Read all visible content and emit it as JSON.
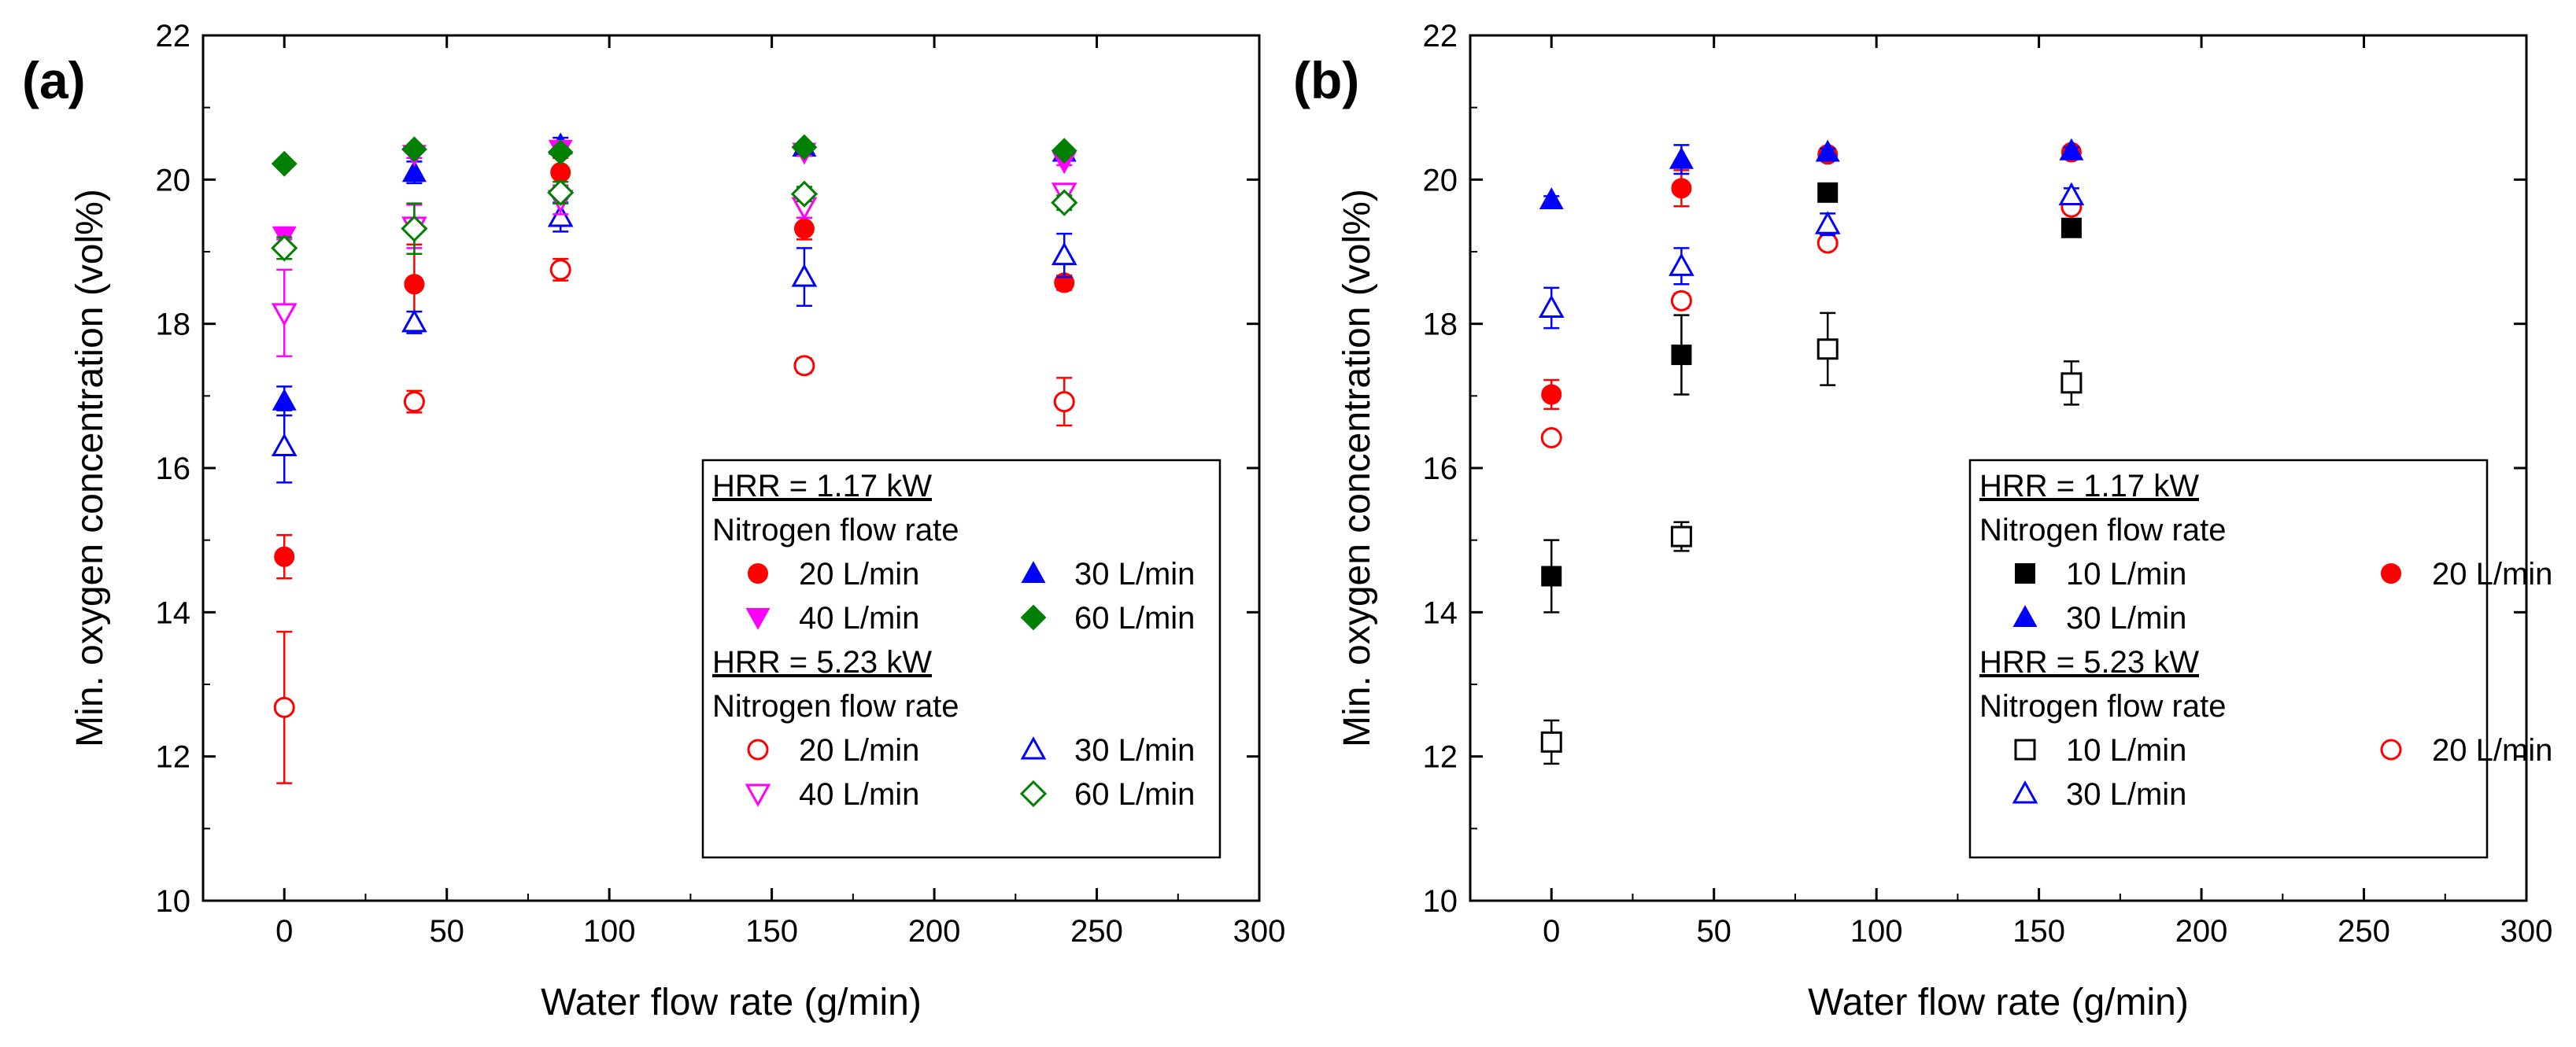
{
  "chart_data": [
    {
      "type": "scatter",
      "panel_label": "(a)",
      "xlabel": "Water flow rate (g/min)",
      "ylabel": "Min. oxygen concentration (vol%)",
      "xlim": [
        -25,
        300
      ],
      "ylim": [
        10,
        22
      ],
      "xticks": [
        0,
        50,
        100,
        150,
        200,
        250,
        300
      ],
      "yticks": [
        10,
        12,
        14,
        16,
        18,
        20,
        22
      ],
      "grid": false,
      "legend_placement": "bottom-right",
      "legend_groups": [
        {
          "heading": "HRR = 1.17 kW",
          "subheading": "Nitrogen flow rate",
          "entries": [
            0,
            1,
            2,
            3
          ]
        },
        {
          "heading": "HRR = 5.23 kW",
          "subheading": "Nitrogen flow rate",
          "entries": [
            4,
            5,
            6,
            7
          ]
        }
      ],
      "series": [
        {
          "name": "20 L/min",
          "marker": "circle",
          "filled": true,
          "color": "#ff0000",
          "points": [
            {
              "x": 0,
              "y": 14.77,
              "err": 0.3
            },
            {
              "x": 40,
              "y": 18.55,
              "err": 0.55
            },
            {
              "x": 85,
              "y": 20.1,
              "err": 0.2
            },
            {
              "x": 160,
              "y": 19.32,
              "err": 0.15
            },
            {
              "x": 240,
              "y": 18.57,
              "err": 0.1
            }
          ]
        },
        {
          "name": "30 L/min",
          "marker": "triangle-up",
          "filled": true,
          "color": "#0000ff",
          "points": [
            {
              "x": 0,
              "y": 16.93,
              "err": 0.2
            },
            {
              "x": 40,
              "y": 20.1,
              "err": 0.15
            },
            {
              "x": 85,
              "y": 20.48,
              "err": 0.1
            },
            {
              "x": 160,
              "y": 20.45,
              "err": 0.05
            },
            {
              "x": 240,
              "y": 20.38,
              "err": 0.05
            }
          ]
        },
        {
          "name": "40 L/min",
          "marker": "triangle-down",
          "filled": true,
          "color": "#ff00ff",
          "points": [
            {
              "x": 0,
              "y": 19.22,
              "err": 0.05
            },
            {
              "x": 40,
              "y": 20.35,
              "err": 0.05
            },
            {
              "x": 85,
              "y": 20.42,
              "err": 0.05
            },
            {
              "x": 160,
              "y": 20.38,
              "err": 0.05
            },
            {
              "x": 240,
              "y": 20.25,
              "err": 0.05
            }
          ]
        },
        {
          "name": "60 L/min",
          "marker": "diamond",
          "filled": true,
          "color": "#008000",
          "points": [
            {
              "x": 0,
              "y": 20.22,
              "err": 0.05
            },
            {
              "x": 40,
              "y": 20.42,
              "err": 0.05
            },
            {
              "x": 85,
              "y": 20.38,
              "err": 0.05
            },
            {
              "x": 160,
              "y": 20.45,
              "err": 0.05
            },
            {
              "x": 240,
              "y": 20.4,
              "err": 0.05
            }
          ]
        },
        {
          "name": "20 L/min",
          "marker": "circle",
          "filled": false,
          "color": "#ff0000",
          "points": [
            {
              "x": 0,
              "y": 12.68,
              "err": 1.05
            },
            {
              "x": 40,
              "y": 16.92,
              "err": 0.15
            },
            {
              "x": 85,
              "y": 18.75,
              "err": 0.15
            },
            {
              "x": 160,
              "y": 17.42,
              "err": 0.1
            },
            {
              "x": 240,
              "y": 16.92,
              "err": 0.33
            }
          ]
        },
        {
          "name": "30 L/min",
          "marker": "triangle-up",
          "filled": false,
          "color": "#0000ff",
          "points": [
            {
              "x": 0,
              "y": 16.3,
              "err": 0.5
            },
            {
              "x": 40,
              "y": 18.02,
              "err": 0.15
            },
            {
              "x": 85,
              "y": 19.48,
              "err": 0.2
            },
            {
              "x": 160,
              "y": 18.65,
              "err": 0.4
            },
            {
              "x": 240,
              "y": 18.95,
              "err": 0.3
            }
          ]
        },
        {
          "name": "40 L/min",
          "marker": "triangle-down",
          "filled": false,
          "color": "#ff00ff",
          "points": [
            {
              "x": 0,
              "y": 18.15,
              "err": 0.6
            },
            {
              "x": 40,
              "y": 19.35,
              "err": 0.3
            },
            {
              "x": 85,
              "y": 19.72,
              "err": 0.2
            },
            {
              "x": 160,
              "y": 19.62,
              "err": 0.15
            },
            {
              "x": 240,
              "y": 19.82,
              "err": 0.1
            }
          ]
        },
        {
          "name": "60 L/min",
          "marker": "diamond",
          "filled": false,
          "color": "#008000",
          "points": [
            {
              "x": 0,
              "y": 19.05,
              "err": 0.15
            },
            {
              "x": 40,
              "y": 19.32,
              "err": 0.35
            },
            {
              "x": 85,
              "y": 19.82,
              "err": 0.15
            },
            {
              "x": 160,
              "y": 19.8,
              "err": 0.1
            },
            {
              "x": 240,
              "y": 19.68,
              "err": 0.1
            }
          ]
        }
      ]
    },
    {
      "type": "scatter",
      "panel_label": "(b)",
      "xlabel": "Water flow rate (g/min)",
      "ylabel": "Min. oxygen concentration (vol%)",
      "xlim": [
        -25,
        300
      ],
      "ylim": [
        10,
        22
      ],
      "xticks": [
        0,
        50,
        100,
        150,
        200,
        250,
        300
      ],
      "yticks": [
        10,
        12,
        14,
        16,
        18,
        20,
        22
      ],
      "grid": false,
      "legend_placement": "bottom-right",
      "legend_groups": [
        {
          "heading": "HRR = 1.17 kW",
          "subheading": "Nitrogen flow rate",
          "entries": [
            0,
            1,
            2
          ]
        },
        {
          "heading": "HRR = 5.23 kW",
          "subheading": "Nitrogen flow rate",
          "entries": [
            3,
            4,
            5
          ]
        }
      ],
      "series": [
        {
          "name": "10 L/min",
          "marker": "square",
          "filled": true,
          "color": "#000000",
          "points": [
            {
              "x": 0,
              "y": 14.5,
              "err": 0.5
            },
            {
              "x": 40,
              "y": 17.57,
              "err": 0.55
            },
            {
              "x": 85,
              "y": 19.82,
              "err": 0.05
            },
            {
              "x": 160,
              "y": 19.33,
              "err": 0.05
            }
          ]
        },
        {
          "name": "20 L/min",
          "marker": "circle",
          "filled": true,
          "color": "#ff0000",
          "points": [
            {
              "x": 0,
              "y": 17.02,
              "err": 0.2
            },
            {
              "x": 40,
              "y": 19.88,
              "err": 0.25
            },
            {
              "x": 85,
              "y": 20.35,
              "err": 0.05
            },
            {
              "x": 160,
              "y": 20.38,
              "err": 0.05
            }
          ]
        },
        {
          "name": "30 L/min",
          "marker": "triangle-up",
          "filled": true,
          "color": "#0000ff",
          "points": [
            {
              "x": 0,
              "y": 19.72,
              "err": 0.05
            },
            {
              "x": 40,
              "y": 20.28,
              "err": 0.2
            },
            {
              "x": 85,
              "y": 20.38,
              "err": 0.05
            },
            {
              "x": 160,
              "y": 20.4,
              "err": 0.05
            }
          ]
        },
        {
          "name": "10 L/min",
          "marker": "square",
          "filled": false,
          "color": "#000000",
          "points": [
            {
              "x": 0,
              "y": 12.2,
              "err": 0.3
            },
            {
              "x": 40,
              "y": 15.05,
              "err": 0.2
            },
            {
              "x": 85,
              "y": 17.65,
              "err": 0.5
            },
            {
              "x": 160,
              "y": 17.18,
              "err": 0.3
            }
          ]
        },
        {
          "name": "20 L/min",
          "marker": "circle",
          "filled": false,
          "color": "#ff0000",
          "points": [
            {
              "x": 0,
              "y": 16.42,
              "err": 0.05
            },
            {
              "x": 40,
              "y": 18.32,
              "err": 0.1
            },
            {
              "x": 85,
              "y": 19.12,
              "err": 0.05
            },
            {
              "x": 160,
              "y": 19.62,
              "err": 0.05
            }
          ]
        },
        {
          "name": "30 L/min",
          "marker": "triangle-up",
          "filled": false,
          "color": "#0000ff",
          "points": [
            {
              "x": 0,
              "y": 18.22,
              "err": 0.28
            },
            {
              "x": 40,
              "y": 18.8,
              "err": 0.25
            },
            {
              "x": 85,
              "y": 19.38,
              "err": 0.15
            },
            {
              "x": 160,
              "y": 19.78,
              "err": 0.1
            }
          ]
        }
      ]
    }
  ]
}
